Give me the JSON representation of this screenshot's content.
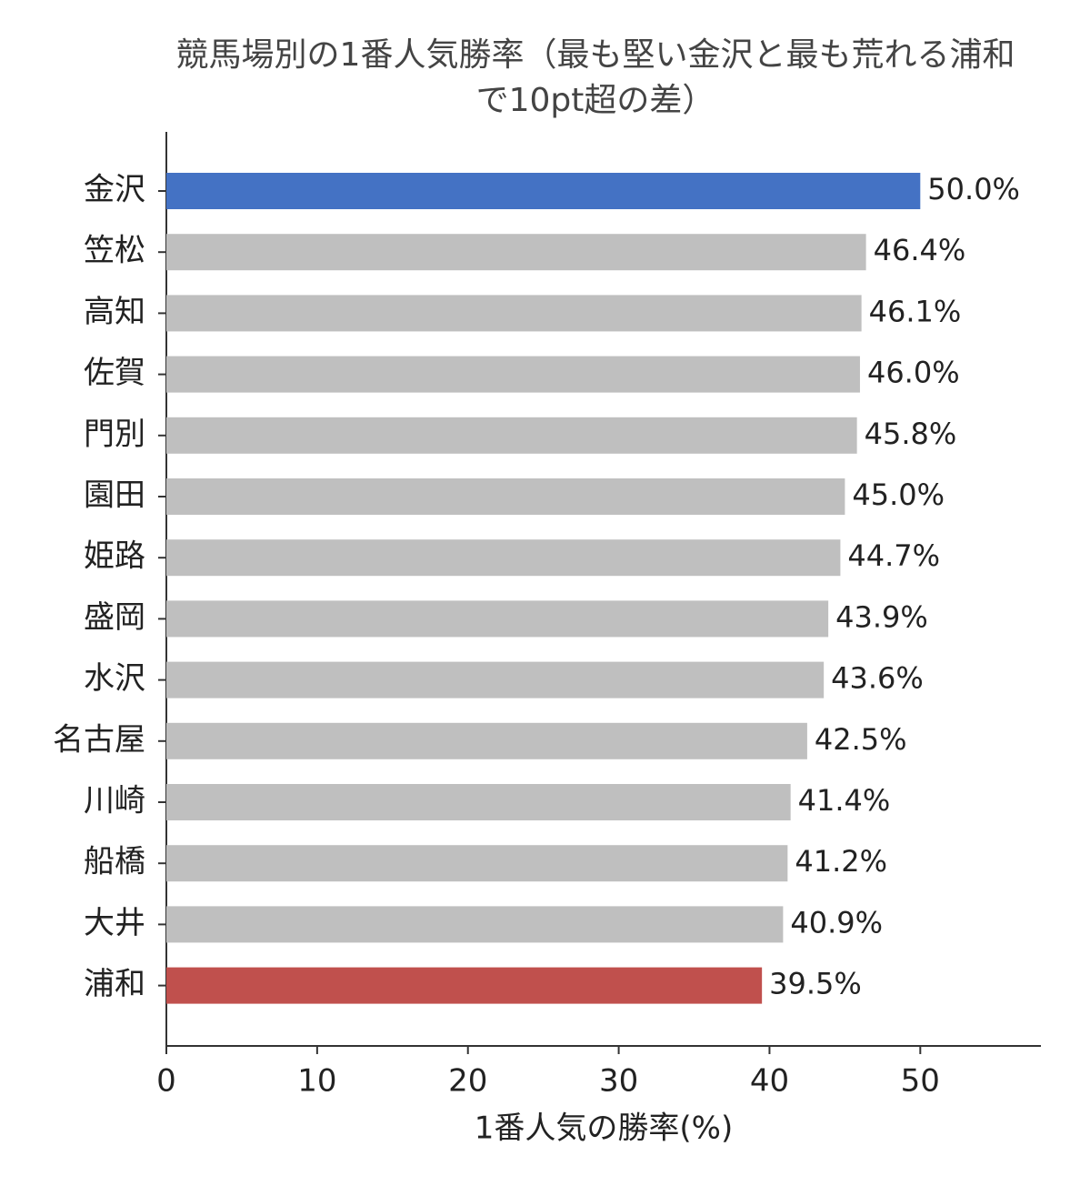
{
  "chart_data": {
    "type": "barh",
    "title": [
      "競馬場別の1番人気勝率（最も堅い金沢と最も荒れる浦和",
      "で10pt超の差）"
    ],
    "xlabel": "1番人気の勝率(%)",
    "categories": [
      "金沢",
      "笠松",
      "高知",
      "佐賀",
      "門別",
      "園田",
      "姫路",
      "盛岡",
      "水沢",
      "名古屋",
      "川崎",
      "船橋",
      "大井",
      "浦和"
    ],
    "values": [
      50.0,
      46.4,
      46.1,
      46.0,
      45.8,
      45.0,
      44.7,
      43.9,
      43.6,
      42.5,
      41.4,
      41.2,
      40.9,
      39.5
    ],
    "value_labels": [
      "50.0%",
      "46.4%",
      "46.1%",
      "46.0%",
      "45.8%",
      "45.0%",
      "44.7%",
      "43.9%",
      "43.6%",
      "42.5%",
      "41.4%",
      "41.2%",
      "40.9%",
      "39.5%"
    ],
    "colors": [
      "#4472c4",
      "#bfbfbf",
      "#bfbfbf",
      "#bfbfbf",
      "#bfbfbf",
      "#bfbfbf",
      "#bfbfbf",
      "#bfbfbf",
      "#bfbfbf",
      "#bfbfbf",
      "#bfbfbf",
      "#bfbfbf",
      "#bfbfbf",
      "#c0504d"
    ],
    "xlim": [
      0,
      58
    ],
    "xticks": [
      0,
      10,
      20,
      30,
      40,
      50
    ]
  }
}
